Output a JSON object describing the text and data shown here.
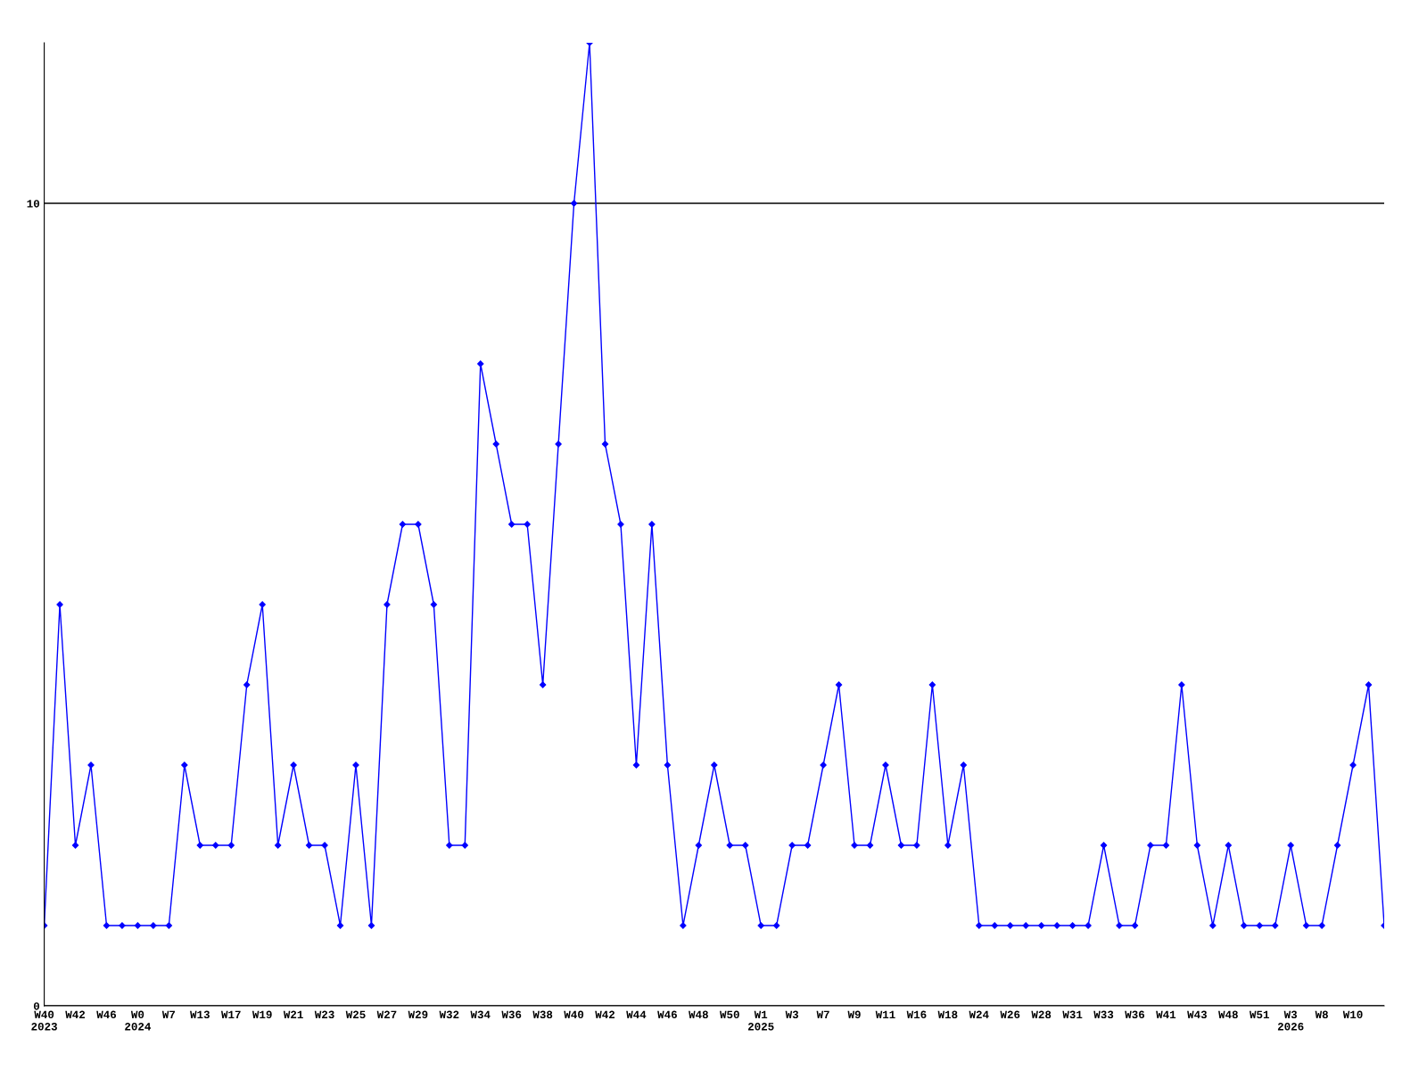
{
  "chart_data": {
    "type": "line",
    "categories": [
      "W40\n2023",
      null,
      "W42",
      null,
      "W46",
      null,
      "W0\n2024",
      null,
      "W7",
      null,
      "W13",
      null,
      "W17",
      null,
      "W19",
      null,
      "W21",
      null,
      "W23",
      null,
      "W25",
      null,
      "W27",
      null,
      "W29",
      null,
      "W32",
      null,
      "W34",
      null,
      "W36",
      null,
      "W38",
      null,
      "W40",
      null,
      "W42",
      null,
      "W44",
      null,
      "W46",
      null,
      "W48",
      null,
      "W50",
      null,
      "W1\n2025",
      null,
      "W3",
      null,
      "W7",
      null,
      "W9",
      null,
      "W11",
      null,
      "W16",
      null,
      "W18",
      null,
      "W24",
      null,
      "W26",
      null,
      "W28",
      null,
      "W31",
      null,
      "W33",
      null,
      "W36",
      null,
      "W41",
      null,
      "W43",
      null,
      "W48",
      null,
      "W51",
      null,
      "W3\n2026",
      null,
      "W8",
      null,
      "W10",
      null,
      null
    ],
    "series": [
      {
        "color": "#0000ff",
        "values": [
          1,
          5,
          2,
          3,
          1,
          1,
          1,
          1,
          1,
          3,
          2,
          2,
          2,
          4,
          5,
          2,
          3,
          2,
          2,
          1,
          3,
          1,
          5,
          6,
          6,
          5,
          2,
          2,
          8,
          7,
          6,
          6,
          4,
          7,
          10,
          12,
          7,
          6,
          3,
          6,
          3,
          1,
          2,
          3,
          2,
          2,
          1,
          1,
          2,
          2,
          3,
          4,
          2,
          2,
          3,
          2,
          2,
          4,
          2,
          3,
          1,
          1,
          1,
          1,
          1,
          1,
          1,
          1,
          2,
          1,
          1,
          2,
          2,
          4,
          2,
          1,
          2,
          1,
          1,
          1,
          2,
          1,
          1,
          2,
          3,
          4,
          1
        ]
      }
    ],
    "ylim": [
      0,
      12
    ],
    "yticks": [
      0,
      10
    ],
    "grid": "y",
    "marker": "diamond",
    "line_style": "solid",
    "legend": false
  }
}
